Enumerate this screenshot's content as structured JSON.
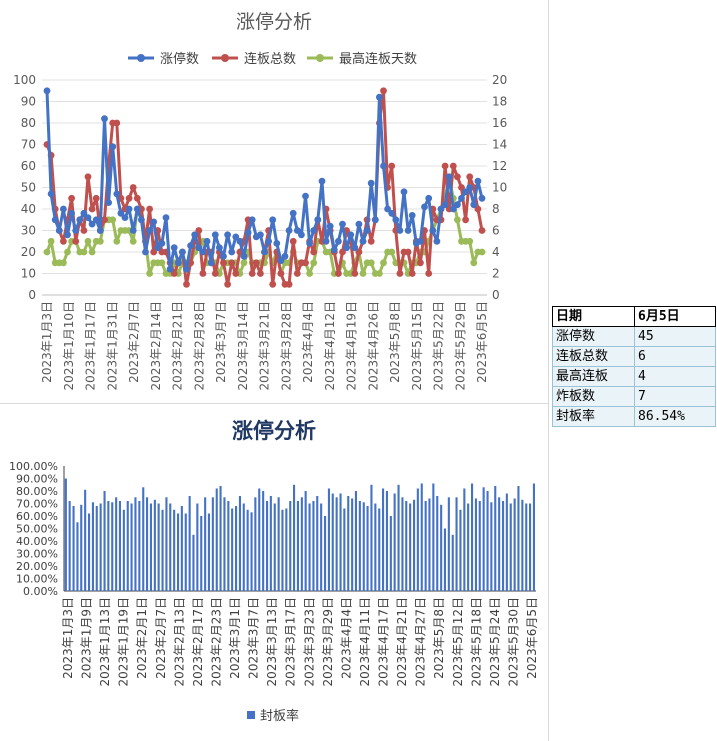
{
  "chart_data": [
    {
      "type": "line",
      "title": "涨停分析",
      "legend_position": "top",
      "x_tick_labels": [
        "2023年1月3日",
        "2023年1月10日",
        "2023年1月17日",
        "2023年1月31日",
        "2023年2月7日",
        "2023年2月14日",
        "2023年2月21日",
        "2023年2月28日",
        "2023年3月7日",
        "2023年3月14日",
        "2023年3月21日",
        "2023年3月28日",
        "2023年4月4日",
        "2023年4月12日",
        "2023年4月19日",
        "2023年4月26日",
        "2023年5月8日",
        "2023年5月15日",
        "2023年5月22日",
        "2023年5月29日",
        "2023年6月5日"
      ],
      "y_left_ticks": [
        "0",
        "10",
        "20",
        "30",
        "40",
        "50",
        "60",
        "70",
        "80",
        "90",
        "100"
      ],
      "y_right_ticks": [
        "0",
        "2",
        "4",
        "6",
        "8",
        "10",
        "12",
        "14",
        "16",
        "18",
        "20"
      ],
      "ylim_left": [
        0,
        100
      ],
      "ylim_right": [
        0,
        20
      ],
      "series": [
        {
          "name": "涨停数",
          "axis": "left",
          "color": "#4472c4",
          "values": [
            95,
            47,
            35,
            30,
            40,
            28,
            38,
            30,
            35,
            38,
            36,
            33,
            35,
            30,
            82,
            43,
            69,
            47,
            38,
            36,
            40,
            30,
            40,
            35,
            20,
            30,
            34,
            22,
            24,
            36,
            12,
            22,
            15,
            20,
            12,
            23,
            28,
            22,
            20,
            25,
            15,
            28,
            22,
            18,
            28,
            20,
            27,
            25,
            18,
            29,
            35,
            27,
            28,
            20,
            25,
            35,
            24,
            16,
            18,
            30,
            38,
            30,
            28,
            46,
            24,
            30,
            35,
            53,
            25,
            32,
            21,
            25,
            33,
            22,
            28,
            22,
            33,
            25,
            30,
            52,
            35,
            92,
            60,
            40,
            38,
            35,
            30,
            48,
            30,
            37,
            24,
            25,
            41,
            45,
            30,
            25,
            40,
            42,
            55,
            40,
            42,
            45,
            48,
            50,
            42,
            53,
            45
          ]
        },
        {
          "name": "连板总数",
          "axis": "left",
          "color": "#c0504d",
          "values": [
            70,
            65,
            40,
            30,
            25,
            35,
            45,
            25,
            35,
            30,
            55,
            40,
            45,
            30,
            35,
            60,
            80,
            80,
            45,
            40,
            45,
            50,
            45,
            40,
            25,
            40,
            20,
            30,
            20,
            20,
            15,
            10,
            15,
            20,
            5,
            15,
            25,
            30,
            10,
            20,
            20,
            10,
            20,
            15,
            5,
            15,
            10,
            20,
            25,
            35,
            10,
            15,
            10,
            20,
            30,
            5,
            20,
            10,
            5,
            5,
            25,
            10,
            15,
            15,
            25,
            20,
            35,
            25,
            40,
            30,
            20,
            10,
            20,
            30,
            25,
            10,
            20,
            25,
            35,
            25,
            35,
            80,
            95,
            50,
            60,
            30,
            10,
            20,
            20,
            10,
            25,
            15,
            30,
            10,
            40,
            35,
            35,
            60,
            40,
            60,
            55,
            50,
            35,
            55,
            50,
            40,
            30
          ]
        },
        {
          "name": "最高连板天数",
          "axis": "left",
          "color": "#9bbb59",
          "values": [
            20,
            25,
            15,
            15,
            15,
            20,
            25,
            25,
            20,
            20,
            25,
            20,
            25,
            25,
            35,
            35,
            35,
            25,
            30,
            30,
            30,
            25,
            40,
            40,
            25,
            10,
            15,
            15,
            15,
            10,
            10,
            15,
            10,
            15,
            15,
            15,
            20,
            25,
            25,
            15,
            15,
            15,
            10,
            15,
            15,
            15,
            15,
            10,
            15,
            20,
            15,
            15,
            15,
            15,
            20,
            15,
            20,
            10,
            15,
            15,
            20,
            15,
            15,
            15,
            10,
            15,
            25,
            25,
            20,
            20,
            10,
            10,
            15,
            10,
            10,
            15,
            20,
            10,
            15,
            15,
            10,
            10,
            15,
            20,
            20,
            15,
            15,
            15,
            10,
            15,
            15,
            20,
            20,
            25,
            30,
            35,
            40,
            45,
            55,
            45,
            35,
            25,
            25,
            25,
            15,
            20,
            20
          ]
        }
      ]
    },
    {
      "type": "bar",
      "title": "涨停分析",
      "legend_position": "bottom",
      "series": [
        {
          "name": "封板率",
          "color": "#4472c4",
          "values": [
            90,
            72,
            68,
            55,
            69,
            81,
            62,
            71,
            68,
            70,
            80,
            72,
            71,
            75,
            72,
            65,
            72,
            70,
            75,
            72,
            83,
            75,
            70,
            73,
            70,
            65,
            75,
            70,
            65,
            62,
            68,
            62,
            76,
            45,
            70,
            60,
            75,
            62,
            75,
            82,
            84,
            75,
            72,
            66,
            68,
            76,
            70,
            65,
            63,
            75,
            82,
            80,
            72,
            76,
            70,
            75,
            65,
            66,
            72,
            85,
            72,
            75,
            80,
            70,
            72,
            76,
            70,
            60,
            82,
            78,
            75,
            78,
            66,
            76,
            74,
            80,
            72,
            71,
            68,
            85,
            70,
            66,
            82,
            80,
            60,
            78,
            85,
            75,
            72,
            70,
            73,
            82,
            86,
            72,
            74,
            86,
            76,
            69,
            50,
            75,
            45,
            75,
            65,
            82,
            70,
            86,
            74,
            72,
            83,
            80,
            71,
            84,
            75,
            72,
            78,
            70,
            74,
            84,
            73,
            70,
            70,
            86
          ]
        }
      ],
      "y_tick_labels": [
        "0.00%",
        "10.00%",
        "20.00%",
        "30.00%",
        "40.00%",
        "50.00%",
        "60.00%",
        "70.00%",
        "80.00%",
        "90.00%",
        "100.00%"
      ],
      "ylim": [
        0,
        100
      ],
      "x_tick_labels": [
        "2023年1月3日",
        "2023年1月9日",
        "2023年1月13日",
        "2023年1月19日",
        "2023年2月1日",
        "2023年2月7日",
        "2023年2月13日",
        "2023年2月17日",
        "2023年2月23日",
        "2023年3月1日",
        "2023年3月7日",
        "2023年3月13日",
        "2023年3月17日",
        "2023年3月23日",
        "2023年3月29日",
        "2023年4月4日",
        "2023年4月11日",
        "2023年4月17日",
        "2023年4月21日",
        "2023年4月27日",
        "2023年5月8日",
        "2023年5月12日",
        "2023年5月18日",
        "2023年5月24日",
        "2023年5月30日",
        "2023年6月5日"
      ]
    }
  ],
  "stats_table": {
    "header": {
      "label": "日期",
      "value": "6月5日"
    },
    "rows": [
      {
        "label": "涨停数",
        "value": "45"
      },
      {
        "label": "连板总数",
        "value": "6"
      },
      {
        "label": "最高连板",
        "value": "4"
      },
      {
        "label": "炸板数",
        "value": "7"
      },
      {
        "label": "封板率",
        "value": "86.54%"
      }
    ]
  }
}
